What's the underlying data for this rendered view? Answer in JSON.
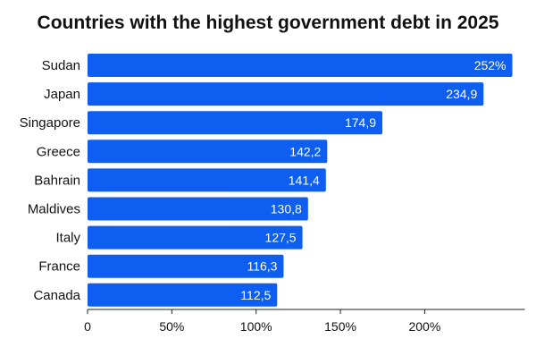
{
  "chart_data": {
    "type": "bar",
    "orientation": "horizontal",
    "title": "Countries with the highest government debt in 2025",
    "categories": [
      "Sudan",
      "Japan",
      "Singapore",
      "Greece",
      "Bahrain",
      "Maldives",
      "Italy",
      "France",
      "Canada"
    ],
    "values": [
      252,
      234.9,
      174.9,
      142.2,
      141.4,
      130.8,
      127.5,
      116.3,
      112.5
    ],
    "data_labels": [
      "252%",
      "234,9",
      "174,9",
      "142,2",
      "141,4",
      "130,8",
      "127,5",
      "116,3",
      "112,5"
    ],
    "x_ticks": [
      0,
      50,
      100,
      150,
      200
    ],
    "x_tick_labels": [
      "0",
      "50%",
      "100%",
      "150%",
      "200%"
    ],
    "xlim": [
      0,
      270
    ],
    "bar_color": "#0F5EF2",
    "grid": false,
    "legend": "none"
  }
}
